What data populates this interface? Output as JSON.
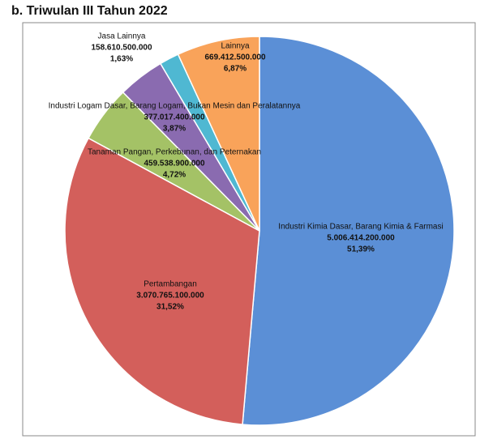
{
  "chart_data": {
    "type": "pie",
    "title": "b. Triwulan III Tahun 2022",
    "categories": [
      "Industri Kimia Dasar, Barang Kimia & Farmasi",
      "Pertambangan",
      "Tanaman Pangan, Perkebunan, dan Peternakan",
      "Industri Logam Dasar, Barang Logam, Bukan Mesin dan Peralatannya",
      "Jasa Lainnya",
      "Lainnya"
    ],
    "values": [
      5006414200000,
      3070765100000,
      459538900000,
      377017400000,
      158610500000,
      669412500000
    ],
    "value_labels": [
      "5.006.414.200.000",
      "3.070.765.100.000",
      "459.538.900.000",
      "377.017.400.000",
      "158.610.500.000",
      "669.412.500.000"
    ],
    "percentages": [
      51.39,
      31.52,
      4.72,
      3.87,
      1.63,
      6.87
    ],
    "percent_labels": [
      "51,39%",
      "31,52%",
      "4,72%",
      "3,87%",
      "1,63%",
      "6,87%"
    ],
    "colors": [
      "#5b8fd6",
      "#d35f5b",
      "#a4c266",
      "#8a6bb0",
      "#4fb8d2",
      "#f9a35a"
    ]
  }
}
